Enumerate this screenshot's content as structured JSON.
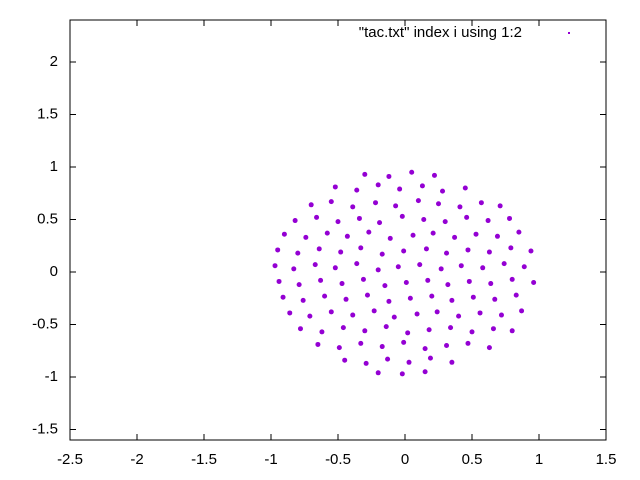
{
  "chart_data": {
    "type": "scatter",
    "xlim": [
      -2.5,
      1.5
    ],
    "ylim": [
      -1.6,
      2.4
    ],
    "xticks": [
      -2.5,
      -2,
      -1.5,
      -1,
      -0.5,
      0,
      0.5,
      1,
      1.5
    ],
    "yticks": [
      -1.5,
      -1,
      -0.5,
      0,
      0.5,
      1,
      1.5,
      2
    ],
    "legend": "top-right",
    "series": [
      {
        "name": "\"tac.txt\" index i using 1:2",
        "color": "#9400d3",
        "x": [
          -0.3,
          -0.12,
          0.05,
          0.22,
          -0.52,
          -0.36,
          -0.2,
          -0.04,
          0.13,
          0.28,
          0.45,
          -0.7,
          -0.55,
          -0.39,
          -0.22,
          -0.07,
          0.1,
          0.25,
          0.41,
          0.57,
          0.71,
          -0.82,
          -0.66,
          -0.5,
          -0.34,
          -0.19,
          -0.02,
          0.14,
          0.3,
          0.46,
          0.62,
          0.78,
          -0.9,
          -0.74,
          -0.58,
          -0.43,
          -0.27,
          -0.11,
          0.06,
          0.21,
          0.37,
          0.53,
          0.69,
          0.85,
          -0.95,
          -0.8,
          -0.64,
          -0.48,
          -0.33,
          -0.17,
          -0.01,
          0.16,
          0.31,
          0.47,
          0.63,
          0.79,
          0.94,
          -0.97,
          -0.83,
          -0.67,
          -0.52,
          -0.36,
          -0.2,
          -0.05,
          0.11,
          0.27,
          0.42,
          0.58,
          0.74,
          0.89,
          -0.94,
          -0.79,
          -0.63,
          -0.47,
          -0.31,
          -0.15,
          0.01,
          0.17,
          0.32,
          0.48,
          0.64,
          0.8,
          0.96,
          -0.91,
          -0.76,
          -0.6,
          -0.44,
          -0.28,
          -0.12,
          0.04,
          0.2,
          0.35,
          0.51,
          0.67,
          0.83,
          -0.86,
          -0.71,
          -0.55,
          -0.39,
          -0.23,
          -0.08,
          0.09,
          0.24,
          0.4,
          0.56,
          0.72,
          0.87,
          -0.78,
          -0.62,
          -0.46,
          -0.3,
          -0.14,
          0.02,
          0.18,
          0.34,
          0.5,
          0.66,
          0.8,
          -0.65,
          -0.49,
          -0.33,
          -0.17,
          -0.01,
          0.15,
          0.31,
          0.47,
          0.63,
          -0.45,
          -0.29,
          -0.13,
          0.03,
          0.19,
          0.35,
          -0.2,
          -0.02,
          0.15
        ],
        "values": [
          0.93,
          0.91,
          0.95,
          0.92,
          0.81,
          0.78,
          0.83,
          0.79,
          0.82,
          0.77,
          0.8,
          0.64,
          0.67,
          0.62,
          0.66,
          0.63,
          0.68,
          0.65,
          0.62,
          0.66,
          0.63,
          0.49,
          0.52,
          0.48,
          0.51,
          0.47,
          0.53,
          0.5,
          0.48,
          0.52,
          0.49,
          0.51,
          0.36,
          0.33,
          0.37,
          0.34,
          0.38,
          0.32,
          0.35,
          0.37,
          0.33,
          0.36,
          0.34,
          0.38,
          0.21,
          0.18,
          0.22,
          0.19,
          0.23,
          0.17,
          0.2,
          0.22,
          0.18,
          0.21,
          0.19,
          0.23,
          0.2,
          0.06,
          0.03,
          0.07,
          0.04,
          0.08,
          0.02,
          0.05,
          0.07,
          0.03,
          0.06,
          0.04,
          0.08,
          0.05,
          -0.09,
          -0.12,
          -0.08,
          -0.11,
          -0.07,
          -0.13,
          -0.1,
          -0.08,
          -0.12,
          -0.09,
          -0.11,
          -0.07,
          -0.1,
          -0.24,
          -0.27,
          -0.23,
          -0.26,
          -0.22,
          -0.28,
          -0.25,
          -0.23,
          -0.27,
          -0.24,
          -0.26,
          -0.22,
          -0.39,
          -0.42,
          -0.38,
          -0.41,
          -0.37,
          -0.43,
          -0.4,
          -0.38,
          -0.42,
          -0.39,
          -0.41,
          -0.37,
          -0.54,
          -0.57,
          -0.53,
          -0.56,
          -0.52,
          -0.58,
          -0.55,
          -0.53,
          -0.57,
          -0.54,
          -0.56,
          -0.69,
          -0.72,
          -0.68,
          -0.71,
          -0.67,
          -0.73,
          -0.7,
          -0.68,
          -0.72,
          -0.84,
          -0.87,
          -0.83,
          -0.86,
          -0.82,
          -0.86,
          -0.96,
          -0.97,
          -0.95
        ]
      }
    ]
  }
}
